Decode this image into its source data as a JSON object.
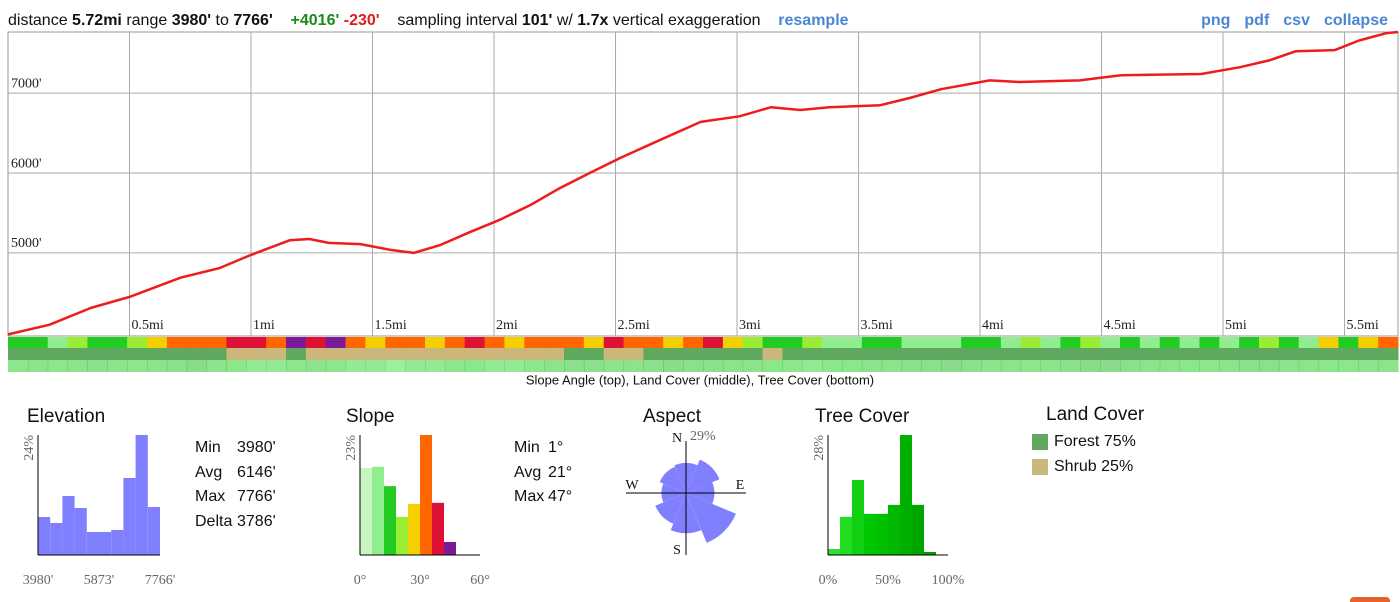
{
  "header": {
    "distance_label": "distance",
    "distance": "5.72mi",
    "range_label": "range",
    "range_min": "3980'",
    "to": "to",
    "range_max": "7766'",
    "gain": "+4016'",
    "loss": "-230'",
    "interval_label": "sampling interval",
    "interval": "101'",
    "with": "w/",
    "exaggeration": "1.7x",
    "exaggeration_label": "vertical exaggeration",
    "resample": "resample"
  },
  "links": [
    "png",
    "pdf",
    "csv",
    "collapse"
  ],
  "chart_data": [
    {
      "type": "line",
      "x": [
        0,
        0.17,
        0.34,
        0.5,
        0.71,
        0.87,
        1.0,
        1.16,
        1.24,
        1.32,
        1.45,
        1.57,
        1.67,
        1.78,
        1.9,
        2.02,
        2.15,
        2.27,
        2.4,
        2.52,
        2.68,
        2.85,
        3.01,
        3.14,
        3.26,
        3.38,
        3.59,
        3.71,
        3.84,
        4.04,
        4.16,
        4.41,
        4.58,
        4.91,
        5.07,
        5.19,
        5.3,
        5.46,
        5.56,
        5.67,
        5.72
      ],
      "series": [
        {
          "color": "#ee1c1c",
          "values": [
            3980,
            4100,
            4310,
            4450,
            4690,
            4810,
            4975,
            5160,
            5175,
            5125,
            5110,
            5040,
            5000,
            5100,
            5260,
            5410,
            5600,
            5810,
            6010,
            6190,
            6410,
            6640,
            6710,
            6825,
            6790,
            6825,
            6850,
            6940,
            7050,
            7160,
            7140,
            7160,
            7225,
            7240,
            7325,
            7410,
            7525,
            7540,
            7660,
            7750,
            7766
          ]
        }
      ],
      "xlim": [
        0,
        5.72
      ],
      "ylim": [
        3960,
        7766
      ],
      "xticks": [
        {
          "value": 0.5,
          "label": "0.5mi"
        },
        {
          "value": 1,
          "label": "1mi"
        },
        {
          "value": 1.5,
          "label": "1.5mi"
        },
        {
          "value": 2,
          "label": "2mi"
        },
        {
          "value": 2.5,
          "label": "2.5mi"
        },
        {
          "value": 3,
          "label": "3mi"
        },
        {
          "value": 3.5,
          "label": "3.5mi"
        },
        {
          "value": 4,
          "label": "4mi"
        },
        {
          "value": 4.5,
          "label": "4.5mi"
        },
        {
          "value": 5,
          "label": "5mi"
        },
        {
          "value": 5.5,
          "label": "5.5mi"
        }
      ],
      "yticks": [
        {
          "value": 5000,
          "label": "5000'"
        },
        {
          "value": 6000,
          "label": "6000'"
        },
        {
          "value": 7000,
          "label": "7000'"
        }
      ],
      "grid": true
    },
    {
      "type": "histogram",
      "title": "Elevation",
      "color": "#8080ff",
      "bins": [
        3980,
        4358.6,
        4737.2,
        5115.8,
        5494.4,
        5873,
        6251.6,
        6630.2,
        7008.8,
        7387.4,
        7766
      ],
      "values": [
        7.6,
        6.4,
        11.8,
        9.4,
        4.6,
        4.6,
        5,
        15.4,
        24,
        9.6
      ],
      "xlim": [
        3980,
        7766
      ],
      "ylim": [
        0,
        24
      ],
      "xticks": [
        {
          "value": 3980,
          "label": "3980'"
        },
        {
          "value": 5873,
          "label": "5873'"
        },
        {
          "value": 7766,
          "label": "7766'"
        }
      ],
      "yticks": [
        {
          "value": 24,
          "label": "24%"
        }
      ]
    },
    {
      "type": "histogram",
      "title": "Slope",
      "colors": [
        "#c8f5c0",
        "#90ee90",
        "#22cc22",
        "#99ee33",
        "#f5d000",
        "#ff6600",
        "#dd1133",
        "#7a1a9a"
      ],
      "bins": [
        0,
        6,
        12,
        18,
        24,
        30,
        36,
        42,
        48
      ],
      "values": [
        16.7,
        16.9,
        13.2,
        7.3,
        9.8,
        23,
        10,
        2.5
      ],
      "xlim": [
        0,
        60
      ],
      "ylim": [
        0,
        23
      ],
      "xticks": [
        {
          "value": 0,
          "label": "0°"
        },
        {
          "value": 30,
          "label": "30°"
        },
        {
          "value": 60,
          "label": "60°"
        }
      ],
      "yticks": [
        {
          "value": 23,
          "label": "23%"
        }
      ]
    },
    {
      "type": "rose",
      "title": "Aspect",
      "color": "#8080ff",
      "categories": [
        "N",
        null,
        "E",
        null,
        "S",
        null,
        "W",
        null
      ],
      "values": [
        9,
        13,
        8,
        29,
        16,
        11,
        6,
        8
      ],
      "ylim": [
        0,
        29
      ],
      "yticks": [
        {
          "value": 29,
          "label": "29%"
        }
      ]
    },
    {
      "type": "histogram",
      "title": "Tree Cover",
      "colors": [
        "#33dd33",
        "#22dd22",
        "#11d011",
        "#00c800",
        "#00c000",
        "#00b800",
        "#00b000",
        "#00a600",
        "#009c00",
        "#009000"
      ],
      "bins": [
        0,
        10,
        20,
        30,
        40,
        50,
        60,
        70,
        80,
        90,
        100
      ],
      "values": [
        1.4,
        8.9,
        17.5,
        9.6,
        9.6,
        11.7,
        28,
        11.7,
        0.7,
        0
      ],
      "xlim": [
        0,
        100
      ],
      "ylim": [
        0,
        28
      ],
      "xticks": [
        {
          "value": 0,
          "label": "0%"
        },
        {
          "value": 50,
          "label": "50%"
        },
        {
          "value": 100,
          "label": "100%"
        }
      ],
      "yticks": [
        {
          "value": 28,
          "label": "28%"
        }
      ]
    }
  ],
  "strips": {
    "slope": [
      12,
      15,
      10,
      18,
      14,
      16,
      20,
      28,
      32,
      34,
      30,
      36,
      40,
      33,
      44,
      38,
      47,
      31,
      26,
      30,
      34,
      28,
      32,
      36,
      30,
      27,
      33,
      31,
      35,
      29,
      38,
      33,
      30,
      26,
      34,
      36,
      28,
      22,
      14,
      12,
      18,
      10,
      8,
      16,
      13,
      6,
      11,
      9,
      15,
      12,
      10,
      18,
      8,
      14,
      22,
      9,
      12,
      7,
      16,
      11,
      13,
      9,
      17,
      21,
      12,
      10,
      24,
      15,
      28,
      34
    ],
    "land_cover": [
      "Forest",
      "Forest",
      "Forest",
      "Forest",
      "Forest",
      "Forest",
      "Forest",
      "Forest",
      "Forest",
      "Forest",
      "Forest",
      "Shrub",
      "Shrub",
      "Shrub",
      "Forest",
      "Shrub",
      "Shrub",
      "Shrub",
      "Shrub",
      "Shrub",
      "Shrub",
      "Shrub",
      "Shrub",
      "Shrub",
      "Shrub",
      "Shrub",
      "Shrub",
      "Shrub",
      "Forest",
      "Forest",
      "Shrub",
      "Shrub",
      "Forest",
      "Forest",
      "Forest",
      "Forest",
      "Forest",
      "Forest",
      "Shrub",
      "Forest",
      "Forest",
      "Forest",
      "Forest",
      "Forest",
      "Forest",
      "Forest",
      "Forest",
      "Forest",
      "Forest",
      "Forest",
      "Forest",
      "Forest",
      "Forest",
      "Forest",
      "Forest",
      "Forest",
      "Forest",
      "Forest",
      "Forest",
      "Forest",
      "Forest",
      "Forest",
      "Forest",
      "Forest",
      "Forest",
      "Forest",
      "Forest",
      "Forest",
      "Forest",
      "Forest"
    ],
    "tree_cover": [
      30,
      40,
      35,
      45,
      50,
      40,
      35,
      45,
      55,
      60,
      40,
      30,
      25,
      20,
      35,
      45,
      30,
      25,
      20,
      15,
      20,
      25,
      30,
      35,
      25,
      20,
      30,
      40,
      50,
      55,
      45,
      40,
      50,
      60,
      55,
      50,
      45,
      40,
      35,
      30,
      25,
      30,
      35,
      40,
      45,
      50,
      55,
      60,
      50,
      45,
      40,
      35,
      45,
      55,
      60,
      65,
      50,
      45,
      40,
      35,
      30,
      40,
      50,
      55,
      45,
      40,
      35,
      30,
      40,
      45
    ],
    "caption": "Slope Angle (top), Land Cover (middle), Tree Cover (bottom)"
  },
  "stats": {
    "elevation": [
      {
        "label": "Min",
        "value": "3980'"
      },
      {
        "label": "Avg",
        "value": "6146'"
      },
      {
        "label": "Max",
        "value": "7766'"
      },
      {
        "label": "Delta",
        "value": "3786'"
      }
    ],
    "slope": [
      {
        "label": "Min",
        "value": "1°"
      },
      {
        "label": "Avg",
        "value": "21°"
      },
      {
        "label": "Max",
        "value": "47°"
      }
    ]
  },
  "land_cover": {
    "title": "Land Cover",
    "items": [
      {
        "name": "Forest",
        "value": "75%",
        "color": "#5fa85f"
      },
      {
        "name": "Shrub",
        "value": "25%",
        "color": "#cbb67c"
      }
    ]
  }
}
